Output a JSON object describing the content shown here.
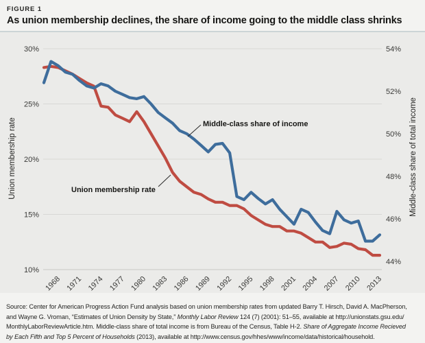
{
  "figure": {
    "label": "FIGURE 1",
    "title": "As union membership declines, the share of income going to the middle class shrinks"
  },
  "chart_data": {
    "type": "line",
    "x": [
      1966,
      1967,
      1968,
      1969,
      1970,
      1971,
      1972,
      1973,
      1974,
      1975,
      1976,
      1977,
      1978,
      1979,
      1980,
      1981,
      1982,
      1983,
      1984,
      1985,
      1986,
      1987,
      1988,
      1989,
      1990,
      1991,
      1992,
      1993,
      1994,
      1995,
      1996,
      1997,
      1998,
      1999,
      2000,
      2001,
      2002,
      2003,
      2004,
      2005,
      2006,
      2007,
      2008,
      2009,
      2010,
      2011,
      2012,
      2013
    ],
    "x_tick_labels": [
      "1968",
      "1971",
      "1974",
      "1977",
      "1980",
      "1983",
      "1986",
      "1989",
      "1992",
      "1995",
      "1998",
      "2001",
      "2004",
      "2007",
      "2010",
      "2013"
    ],
    "left_axis": {
      "title": "Union membership rate",
      "ticks": [
        "30%",
        "25%",
        "20%",
        "15%",
        "10%"
      ],
      "range": [
        10,
        30
      ]
    },
    "right_axis": {
      "title": "Middle-class share of total income",
      "ticks": [
        "54%",
        "52%",
        "50%",
        "48%",
        "46%",
        "44%"
      ],
      "range": [
        44,
        54
      ]
    },
    "grid": true,
    "background": "#ebebe9",
    "series": [
      {
        "name": "Union membership rate",
        "axis": "left",
        "color": "#bf4c42",
        "values": [
          28.3,
          28.4,
          28.3,
          28.0,
          27.7,
          27.3,
          26.9,
          26.6,
          24.8,
          24.7,
          24.0,
          23.7,
          23.4,
          24.3,
          23.4,
          22.3,
          21.2,
          20.1,
          18.8,
          18.0,
          17.5,
          17.0,
          16.8,
          16.4,
          16.1,
          16.1,
          15.8,
          15.8,
          15.5,
          14.9,
          14.5,
          14.1,
          13.9,
          13.9,
          13.5,
          13.5,
          13.3,
          12.9,
          12.5,
          12.5,
          12.0,
          12.1,
          12.4,
          12.3,
          11.9,
          11.8,
          11.3,
          11.3
        ]
      },
      {
        "name": "Middle-class share of income",
        "axis": "right",
        "color": "#3e6d9c",
        "values": [
          52.4,
          53.4,
          53.2,
          52.9,
          52.8,
          52.5,
          52.25,
          52.15,
          52.35,
          52.25,
          52.0,
          51.85,
          51.7,
          51.65,
          51.75,
          51.4,
          51.0,
          50.75,
          50.5,
          50.15,
          50.0,
          49.75,
          49.45,
          49.15,
          49.5,
          49.55,
          49.1,
          47.05,
          46.9,
          47.25,
          46.95,
          46.7,
          46.9,
          46.45,
          46.1,
          45.75,
          46.45,
          46.3,
          45.85,
          45.45,
          45.3,
          46.35,
          45.95,
          45.8,
          45.9,
          44.95,
          44.95,
          45.25
        ]
      }
    ],
    "annotations": [
      {
        "text": "Middle-class share of income"
      },
      {
        "text": "Union membership rate"
      }
    ]
  },
  "source": {
    "lines": [
      [
        {
          "text": "Source: Center for American Progress Action Fund analysis based on union membership rates from updated Barry T. Hirsch, David A. MacPherson,",
          "italic": false
        }
      ],
      [
        {
          "text": "and Wayne G. Vroman, “Estimates of Union Density by State,” ",
          "italic": false
        },
        {
          "text": "Monthly Labor Review",
          "italic": true
        },
        {
          "text": " 124 (7) (2001): 51–55, available at http://unionstats.gsu.edu/",
          "italic": false
        }
      ],
      [
        {
          "text": "MonthlyLaborReviewArticle.htm. Middle-class share of total income is from Bureau of the Census, Table H-2. ",
          "italic": false
        },
        {
          "text": "Share of Aggregate Income Recieved",
          "italic": true
        }
      ],
      [
        {
          "text": "by Each Fifth and Top 5 Percent of Households",
          "italic": true
        },
        {
          "text": " (2013), available at http://www.census.gov/hhes/www/income/data/historical/household.",
          "italic": false
        }
      ]
    ]
  }
}
